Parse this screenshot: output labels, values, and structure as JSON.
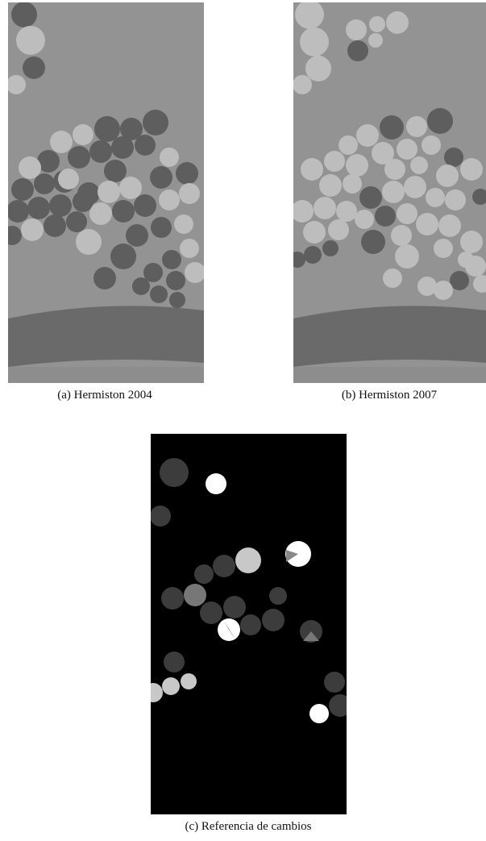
{
  "figure": {
    "panels": [
      {
        "caption": "(a) Hermiston 2004"
      },
      {
        "caption": "(b) Hermiston 2007"
      },
      {
        "caption": "(c) Referencia de cambios"
      }
    ]
  }
}
